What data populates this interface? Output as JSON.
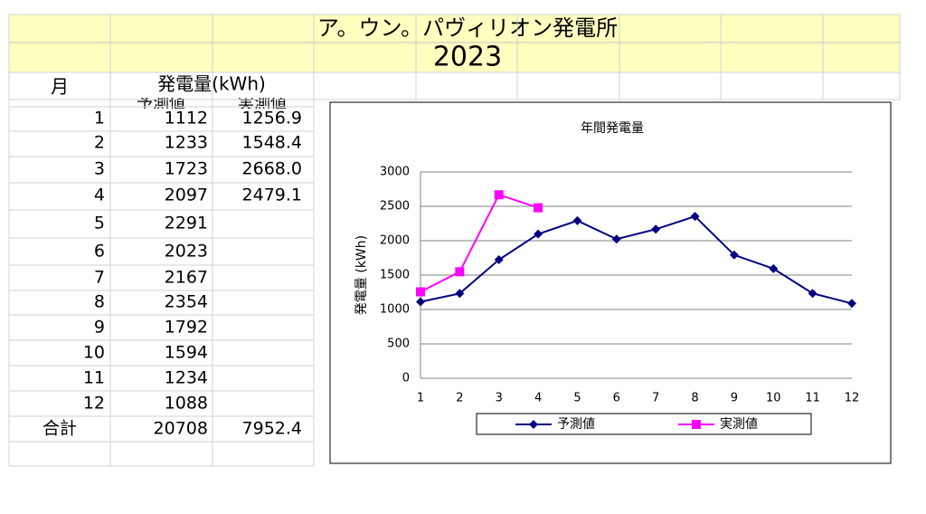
{
  "header": {
    "title": "ア。ウン。パヴィリオン発電所",
    "year": "2023"
  },
  "table": {
    "month_header": "月",
    "power_header": "発電量(kWh)",
    "sub_headers": [
      "予測値",
      "実測値"
    ],
    "rows": [
      [
        "1",
        "1112",
        "1256.9"
      ],
      [
        "2",
        "1233",
        "1548.4"
      ],
      [
        "3",
        "1723",
        "2668.0"
      ],
      [
        "4",
        "2097",
        "2479.1"
      ],
      [
        "5",
        "2291"
      ],
      [
        "6",
        "2023"
      ],
      [
        "7",
        "2167"
      ],
      [
        "8",
        "2354"
      ],
      [
        "9",
        "1792"
      ],
      [
        "10",
        "1594"
      ],
      [
        "11",
        "1234"
      ],
      [
        "12",
        "1088"
      ]
    ],
    "total": [
      "合計",
      "20708",
      "7952.4"
    ]
  },
  "chart_data": {
    "type": "line",
    "title": "年間発電量",
    "y_label": "発電量 (kWh)",
    "categories": [
      "1",
      "2",
      "3",
      "4",
      "5",
      "6",
      "7",
      "8",
      "9",
      "10",
      "11",
      "12"
    ],
    "series": [
      {
        "name": "予測値",
        "color": "#000080",
        "marker": "diamond",
        "values": [
          1112,
          1233,
          1723,
          2097,
          2291,
          2023,
          2167,
          2354,
          1792,
          1594,
          1234,
          1088
        ]
      },
      {
        "name": "実測値",
        "color": "#ff00ff",
        "marker": "square",
        "values": [
          1256.9,
          1548.4,
          2668,
          2479.1,
          null,
          null,
          null,
          null,
          null,
          null,
          null,
          null
        ]
      }
    ],
    "ylim": [
      0,
      3000
    ],
    "yticks": [
      0,
      500,
      1000,
      1500,
      2000,
      2500,
      3000
    ],
    "grid": true,
    "legend": "bottom"
  }
}
